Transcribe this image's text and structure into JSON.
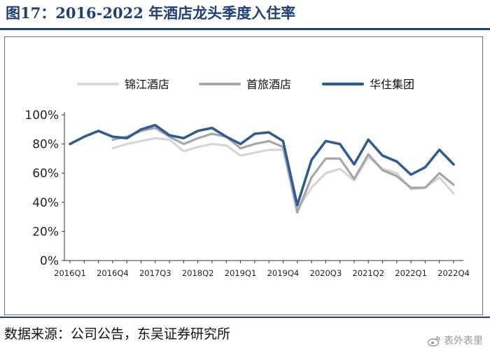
{
  "header": {
    "title": "图17：2016-2022 年酒店龙头季度入住率"
  },
  "footer": {
    "source": "数据来源：公司公告，东吴证券研究所",
    "watermark": "表外表里"
  },
  "colors": {
    "jinjiang": "#d6d6d6",
    "shouluo": "#a6a6a6",
    "huazhu": "#2f5c94",
    "frame": "#1f3f78"
  },
  "icons": {
    "watermark": "weibo-icon"
  },
  "chart_data": {
    "type": "line",
    "title": "",
    "xlabel": "",
    "ylabel": "",
    "ylim": [
      0,
      100
    ],
    "y_tick_format": "percent",
    "yticks": [
      0,
      20,
      40,
      60,
      80,
      100
    ],
    "ytick_labels": [
      "0%",
      "20%",
      "40%",
      "60%",
      "80%",
      "100%"
    ],
    "grid": false,
    "legend_position": "top",
    "categories": [
      "2016Q1",
      "2016Q2",
      "2016Q3",
      "2016Q4",
      "2017Q1",
      "2017Q2",
      "2017Q3",
      "2017Q4",
      "2018Q1",
      "2018Q2",
      "2018Q3",
      "2018Q4",
      "2019Q1",
      "2019Q2",
      "2019Q3",
      "2019Q4",
      "2020Q1",
      "2020Q2",
      "2020Q3",
      "2020Q4",
      "2021Q1",
      "2021Q2",
      "2021Q3",
      "2021Q4",
      "2022Q1",
      "2022Q2",
      "2022Q3",
      "2022Q4"
    ],
    "x_tick_labels": [
      "2016Q1",
      "2016Q4",
      "2017Q3",
      "2018Q2",
      "2019Q1",
      "2019Q4",
      "2020Q3",
      "2021Q2",
      "2022Q1",
      "2022Q4"
    ],
    "x_tick_indices": [
      0,
      3,
      6,
      9,
      12,
      15,
      18,
      21,
      24,
      27
    ],
    "series": [
      {
        "name": "锦江酒店",
        "values": [
          null,
          null,
          null,
          77,
          80,
          82,
          84,
          83,
          75,
          78,
          80,
          79,
          72,
          74,
          76,
          76,
          35,
          50,
          60,
          63,
          55,
          71,
          63,
          60,
          49,
          50,
          57,
          46
        ]
      },
      {
        "name": "首旅酒店",
        "values": [
          null,
          null,
          null,
          83,
          85,
          89,
          91,
          85,
          80,
          84,
          87,
          85,
          77,
          80,
          82,
          78,
          33,
          57,
          70,
          70,
          56,
          73,
          62,
          58,
          50,
          50,
          60,
          52
        ]
      },
      {
        "name": "华住集团",
        "values": [
          80,
          85,
          89,
          85,
          84,
          90,
          93,
          86,
          84,
          89,
          91,
          85,
          80,
          87,
          88,
          82,
          38,
          69,
          82,
          80,
          66,
          83,
          72,
          68,
          59,
          64,
          76,
          66
        ]
      }
    ]
  }
}
